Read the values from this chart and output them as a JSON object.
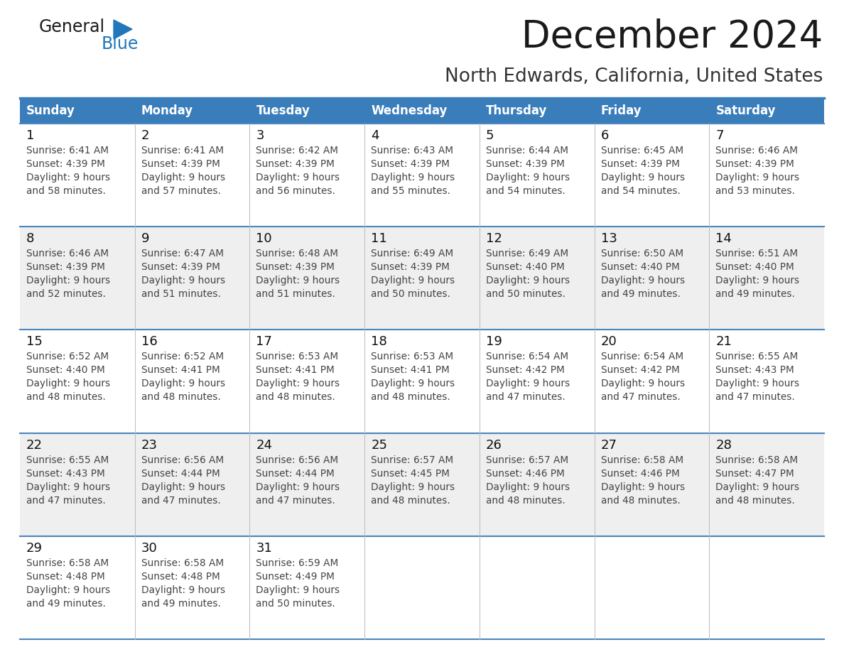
{
  "title": "December 2024",
  "subtitle": "North Edwards, California, United States",
  "header_bg": "#3A7DBB",
  "header_text_color": "#FFFFFF",
  "weekdays": [
    "Sunday",
    "Monday",
    "Tuesday",
    "Wednesday",
    "Thursday",
    "Friday",
    "Saturday"
  ],
  "row_bg": "#FFFFFF",
  "row_bg_alt": "#EFEFEF",
  "grid_line_color": "#4A86BF",
  "day_number_color": "#111111",
  "cell_text_color": "#444444",
  "title_color": "#1a1a1a",
  "subtitle_color": "#333333",
  "logo_general_color": "#1a1a1a",
  "logo_blue_color": "#2277BB",
  "weeks": [
    [
      {
        "day": 1,
        "sunrise": "6:41 AM",
        "sunset": "4:39 PM",
        "daylight_suffix": "58 minutes."
      },
      {
        "day": 2,
        "sunrise": "6:41 AM",
        "sunset": "4:39 PM",
        "daylight_suffix": "57 minutes."
      },
      {
        "day": 3,
        "sunrise": "6:42 AM",
        "sunset": "4:39 PM",
        "daylight_suffix": "56 minutes."
      },
      {
        "day": 4,
        "sunrise": "6:43 AM",
        "sunset": "4:39 PM",
        "daylight_suffix": "55 minutes."
      },
      {
        "day": 5,
        "sunrise": "6:44 AM",
        "sunset": "4:39 PM",
        "daylight_suffix": "54 minutes."
      },
      {
        "day": 6,
        "sunrise": "6:45 AM",
        "sunset": "4:39 PM",
        "daylight_suffix": "54 minutes."
      },
      {
        "day": 7,
        "sunrise": "6:46 AM",
        "sunset": "4:39 PM",
        "daylight_suffix": "53 minutes."
      }
    ],
    [
      {
        "day": 8,
        "sunrise": "6:46 AM",
        "sunset": "4:39 PM",
        "daylight_suffix": "52 minutes."
      },
      {
        "day": 9,
        "sunrise": "6:47 AM",
        "sunset": "4:39 PM",
        "daylight_suffix": "51 minutes."
      },
      {
        "day": 10,
        "sunrise": "6:48 AM",
        "sunset": "4:39 PM",
        "daylight_suffix": "51 minutes."
      },
      {
        "day": 11,
        "sunrise": "6:49 AM",
        "sunset": "4:39 PM",
        "daylight_suffix": "50 minutes."
      },
      {
        "day": 12,
        "sunrise": "6:49 AM",
        "sunset": "4:40 PM",
        "daylight_suffix": "50 minutes."
      },
      {
        "day": 13,
        "sunrise": "6:50 AM",
        "sunset": "4:40 PM",
        "daylight_suffix": "49 minutes."
      },
      {
        "day": 14,
        "sunrise": "6:51 AM",
        "sunset": "4:40 PM",
        "daylight_suffix": "49 minutes."
      }
    ],
    [
      {
        "day": 15,
        "sunrise": "6:52 AM",
        "sunset": "4:40 PM",
        "daylight_suffix": "48 minutes."
      },
      {
        "day": 16,
        "sunrise": "6:52 AM",
        "sunset": "4:41 PM",
        "daylight_suffix": "48 minutes."
      },
      {
        "day": 17,
        "sunrise": "6:53 AM",
        "sunset": "4:41 PM",
        "daylight_suffix": "48 minutes."
      },
      {
        "day": 18,
        "sunrise": "6:53 AM",
        "sunset": "4:41 PM",
        "daylight_suffix": "48 minutes."
      },
      {
        "day": 19,
        "sunrise": "6:54 AM",
        "sunset": "4:42 PM",
        "daylight_suffix": "47 minutes."
      },
      {
        "day": 20,
        "sunrise": "6:54 AM",
        "sunset": "4:42 PM",
        "daylight_suffix": "47 minutes."
      },
      {
        "day": 21,
        "sunrise": "6:55 AM",
        "sunset": "4:43 PM",
        "daylight_suffix": "47 minutes."
      }
    ],
    [
      {
        "day": 22,
        "sunrise": "6:55 AM",
        "sunset": "4:43 PM",
        "daylight_suffix": "47 minutes."
      },
      {
        "day": 23,
        "sunrise": "6:56 AM",
        "sunset": "4:44 PM",
        "daylight_suffix": "47 minutes."
      },
      {
        "day": 24,
        "sunrise": "6:56 AM",
        "sunset": "4:44 PM",
        "daylight_suffix": "47 minutes."
      },
      {
        "day": 25,
        "sunrise": "6:57 AM",
        "sunset": "4:45 PM",
        "daylight_suffix": "48 minutes."
      },
      {
        "day": 26,
        "sunrise": "6:57 AM",
        "sunset": "4:46 PM",
        "daylight_suffix": "48 minutes."
      },
      {
        "day": 27,
        "sunrise": "6:58 AM",
        "sunset": "4:46 PM",
        "daylight_suffix": "48 minutes."
      },
      {
        "day": 28,
        "sunrise": "6:58 AM",
        "sunset": "4:47 PM",
        "daylight_suffix": "48 minutes."
      }
    ],
    [
      {
        "day": 29,
        "sunrise": "6:58 AM",
        "sunset": "4:48 PM",
        "daylight_suffix": "49 minutes."
      },
      {
        "day": 30,
        "sunrise": "6:58 AM",
        "sunset": "4:48 PM",
        "daylight_suffix": "49 minutes."
      },
      {
        "day": 31,
        "sunrise": "6:59 AM",
        "sunset": "4:49 PM",
        "daylight_suffix": "50 minutes."
      },
      null,
      null,
      null,
      null
    ]
  ],
  "figsize": [
    11.88,
    9.18
  ],
  "dpi": 100
}
